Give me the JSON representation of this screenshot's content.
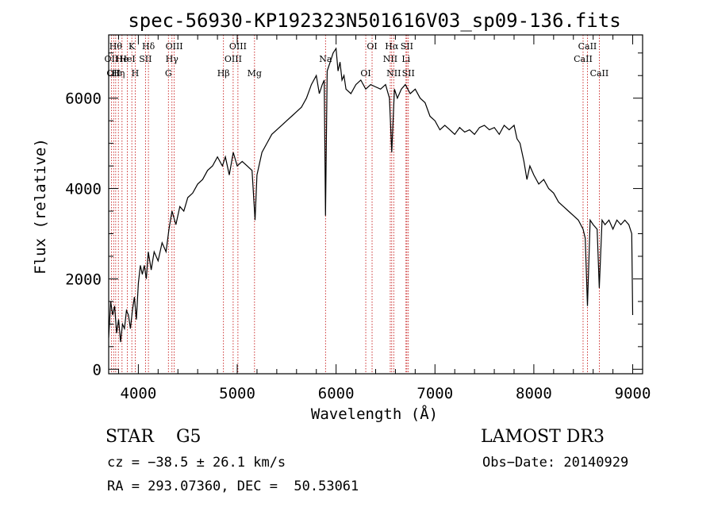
{
  "title": "spec-56930-KP192323N501616V03_sp09-136.fits",
  "info": {
    "class_label": "STAR    G5",
    "survey": "LAMOST DR3",
    "cz": "cz = −38.5 ± 26.1 km/s",
    "obs_date": "Obs−Date: 20140929",
    "coords": "RA = 293.07360, DEC =  50.53061"
  },
  "colors": {
    "line_marker": "#c00000",
    "spectrum": "#000000"
  },
  "chart_data": {
    "type": "line",
    "title": "spec-56930-KP192323N501616V03_sp09-136.fits",
    "xlabel": "Wavelength (Å)",
    "ylabel": "Flux (relative)",
    "xlim": [
      3700,
      9100
    ],
    "ylim": [
      -100,
      7400
    ],
    "x_ticks": [
      4000,
      5000,
      6000,
      7000,
      8000,
      9000
    ],
    "x_tick_labels": [
      "4000",
      "5000",
      "6000",
      "7000",
      "8000",
      "9000"
    ],
    "y_ticks": [
      0,
      2000,
      4000,
      6000
    ],
    "y_tick_labels": [
      "0",
      "2000",
      "4000",
      "6000"
    ],
    "grid": false,
    "legend": "none",
    "spectrum": {
      "x": [
        3700,
        3720,
        3740,
        3760,
        3780,
        3800,
        3820,
        3840,
        3860,
        3880,
        3900,
        3920,
        3940,
        3960,
        3980,
        4000,
        4020,
        4040,
        4060,
        4080,
        4100,
        4130,
        4160,
        4200,
        4240,
        4280,
        4310,
        4340,
        4380,
        4420,
        4460,
        4500,
        4550,
        4600,
        4650,
        4700,
        4750,
        4800,
        4850,
        4880,
        4920,
        4960,
        5000,
        5050,
        5100,
        5150,
        5180,
        5200,
        5250,
        5300,
        5350,
        5400,
        5450,
        5500,
        5550,
        5600,
        5650,
        5700,
        5750,
        5800,
        5830,
        5860,
        5880,
        5893,
        5910,
        5940,
        5970,
        6000,
        6020,
        6040,
        6060,
        6080,
        6100,
        6150,
        6200,
        6250,
        6300,
        6350,
        6400,
        6450,
        6500,
        6540,
        6563,
        6590,
        6620,
        6660,
        6700,
        6750,
        6800,
        6850,
        6900,
        6950,
        7000,
        7050,
        7100,
        7150,
        7200,
        7250,
        7300,
        7350,
        7400,
        7450,
        7500,
        7550,
        7600,
        7650,
        7700,
        7750,
        7800,
        7830,
        7860,
        7900,
        7930,
        7960,
        8000,
        8050,
        8100,
        8150,
        8200,
        8250,
        8300,
        8350,
        8400,
        8450,
        8498,
        8520,
        8542,
        8570,
        8600,
        8640,
        8662,
        8690,
        8720,
        8760,
        8800,
        8840,
        8880,
        8920,
        8960,
        8990,
        9000
      ],
      "y": [
        700,
        1500,
        1200,
        1400,
        800,
        1100,
        600,
        1000,
        900,
        1300,
        1200,
        900,
        1300,
        1600,
        1100,
        1900,
        2300,
        2100,
        2300,
        2000,
        2600,
        2200,
        2600,
        2400,
        2800,
        2600,
        3100,
        3500,
        3200,
        3600,
        3500,
        3800,
        3900,
        4100,
        4200,
        4400,
        4500,
        4700,
        4500,
        4700,
        4300,
        4800,
        4500,
        4600,
        4500,
        4400,
        3300,
        4300,
        4800,
        5000,
        5200,
        5300,
        5400,
        5500,
        5600,
        5700,
        5800,
        6000,
        6300,
        6500,
        6100,
        6300,
        6400,
        3400,
        6600,
        6800,
        7000,
        7100,
        6600,
        6800,
        6400,
        6500,
        6200,
        6100,
        6300,
        6400,
        6200,
        6300,
        6250,
        6200,
        6300,
        6000,
        4800,
        6200,
        6000,
        6200,
        6300,
        6100,
        6200,
        6000,
        5900,
        5600,
        5500,
        5300,
        5400,
        5300,
        5200,
        5350,
        5250,
        5300,
        5200,
        5350,
        5400,
        5300,
        5350,
        5200,
        5400,
        5300,
        5400,
        5100,
        5000,
        4600,
        4200,
        4500,
        4300,
        4100,
        4200,
        4000,
        3900,
        3700,
        3600,
        3500,
        3400,
        3300,
        3100,
        2900,
        1400,
        3300,
        3200,
        3100,
        1800,
        3300,
        3200,
        3300,
        3100,
        3300,
        3200,
        3300,
        3200,
        3000,
        1200
      ]
    },
    "lines": [
      {
        "wl": 3727,
        "label": "OII",
        "row": 2
      },
      {
        "wl": 3750,
        "label": "OII",
        "row": 3
      },
      {
        "wl": 3771,
        "label": "Hθ",
        "row": 1
      },
      {
        "wl": 3798,
        "label": "Hη",
        "row": 3
      },
      {
        "wl": 3835,
        "label": "He",
        "row": 2
      },
      {
        "wl": 3889,
        "label": "HeI",
        "row": 2
      },
      {
        "wl": 3934,
        "label": "K",
        "row": 1
      },
      {
        "wl": 3968,
        "label": "H",
        "row": 3
      },
      {
        "wl": 4072,
        "label": "SII",
        "row": 2
      },
      {
        "wl": 4102,
        "label": "Hδ",
        "row": 1
      },
      {
        "wl": 4304,
        "label": "G",
        "row": 3
      },
      {
        "wl": 4340,
        "label": "Hγ",
        "row": 2
      },
      {
        "wl": 4363,
        "label": "OIII",
        "row": 1
      },
      {
        "wl": 4861,
        "label": "Hβ",
        "row": 3
      },
      {
        "wl": 4959,
        "label": "OIII",
        "row": 2
      },
      {
        "wl": 5007,
        "label": "OIII",
        "row": 1
      },
      {
        "wl": 5175,
        "label": "Mg",
        "row": 3
      },
      {
        "wl": 5893,
        "label": "Na",
        "row": 2
      },
      {
        "wl": 6300,
        "label": "OI",
        "row": 3
      },
      {
        "wl": 6364,
        "label": "OI",
        "row": 1
      },
      {
        "wl": 6548,
        "label": "NII",
        "row": 2
      },
      {
        "wl": 6563,
        "label": "Hα",
        "row": 1
      },
      {
        "wl": 6583,
        "label": "NII",
        "row": 3
      },
      {
        "wl": 6707,
        "label": "Li",
        "row": 2
      },
      {
        "wl": 6716,
        "label": "SII",
        "row": 1
      },
      {
        "wl": 6731,
        "label": "SII",
        "row": 3
      },
      {
        "wl": 8498,
        "label": "CaII",
        "row": 2
      },
      {
        "wl": 8542,
        "label": "CaII",
        "row": 1
      },
      {
        "wl": 8662,
        "label": "CaII",
        "row": 3
      }
    ]
  }
}
